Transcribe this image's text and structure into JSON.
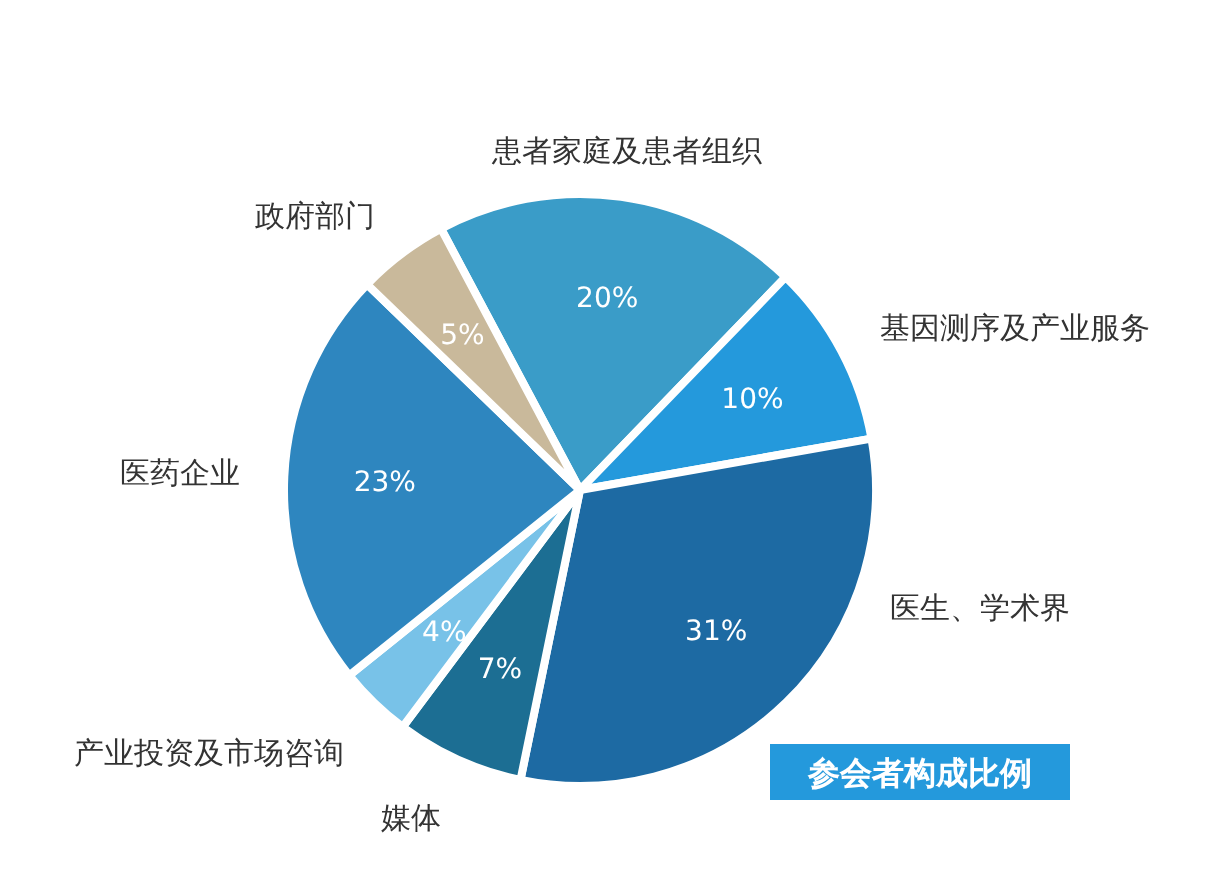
{
  "chart_data": {
    "type": "pie",
    "title": "参会者构成比例",
    "categories": [
      "患者家庭及患者组织",
      "基因测序及产业服务",
      "医生、学术界",
      "媒体",
      "产业投资及市场咨询",
      "医药企业",
      "政府部门"
    ],
    "values": [
      20,
      10,
      31,
      7,
      4,
      23,
      5
    ],
    "colors": [
      "#3a9cc8",
      "#2499dc",
      "#1d6aa3",
      "#1c6e93",
      "#78c2e8",
      "#2e86bf",
      "#c9b99b"
    ],
    "value_labels": [
      "20%",
      "10%",
      "31%",
      "7%",
      "4%",
      "23%",
      "5%"
    ]
  }
}
